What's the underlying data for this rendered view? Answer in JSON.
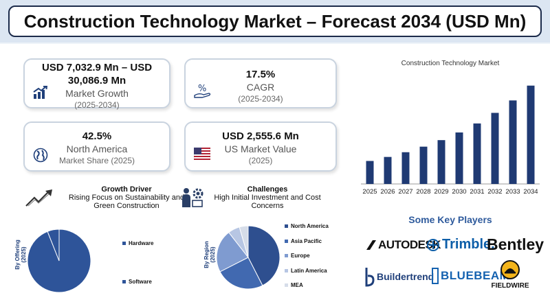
{
  "title": "Construction Technology Market – Forecast 2034 (USD Mn)",
  "cards": {
    "market_growth": {
      "value": "USD 7,032.9 Mn – USD 30,086.9 Mn",
      "label": "Market Growth",
      "sub": "(2025-2034)"
    },
    "cagr": {
      "value": "17.5%",
      "label": "CAGR",
      "sub": "(2025-2034)"
    },
    "north_america": {
      "value": "42.5%",
      "label": "North America",
      "sub": "Market Share (2025)"
    },
    "us_market": {
      "value": "USD 2,555.6 Mn",
      "label": "US Market Value",
      "sub": "(2025)"
    }
  },
  "growth_driver": {
    "title": "Growth Driver",
    "text": "Rising Focus on Sustainability and Green Construction"
  },
  "challenges": {
    "title": "Challenges",
    "text": "High Initial Investment and Cost Concerns"
  },
  "icons": {
    "market_growth": "bar-chart-arrow-icon",
    "cagr": "percent-hand-icon",
    "north_america": "globe-icon",
    "us_market": "us-flag-icon",
    "growth_driver": "trend-arrow-icon",
    "challenges": "worker-gear-icon"
  },
  "chart_data": [
    {
      "type": "bar",
      "title": "Construction Technology Market",
      "categories": [
        "2025",
        "2026",
        "2027",
        "2028",
        "2029",
        "2030",
        "2031",
        "2032",
        "2033",
        "2034"
      ],
      "values": [
        7032.9,
        8263.7,
        9709.8,
        11409.0,
        13405.6,
        15751.6,
        18508.1,
        21746.9,
        25552.6,
        30086.9
      ],
      "ylim": [
        0,
        31500
      ],
      "color": "#1f3a73",
      "grid": false,
      "legend": "none"
    },
    {
      "type": "pie",
      "ylabel": "By Offering (2025)",
      "categories": [
        "Hardware",
        "Software"
      ],
      "values": [
        94,
        6
      ],
      "colors": [
        "#2e5499",
        "#2e5499"
      ],
      "legend": "right"
    },
    {
      "type": "pie",
      "ylabel": "By Region (2025)",
      "categories": [
        "North America",
        "Asia Pacific",
        "Europe",
        "Latin America",
        "MEA"
      ],
      "values": [
        42.5,
        25,
        22,
        6,
        4.5
      ],
      "colors": [
        "#2e4f8f",
        "#4169b0",
        "#7f9bd0",
        "#b7c6e3",
        "#d6dde9"
      ],
      "legend": "right"
    }
  ],
  "key_players": {
    "title": "Some Key Players",
    "logos": [
      "AUTODESK",
      "Trimble.",
      "Bentley",
      "Buildertrend",
      "BLUEBEAM",
      "FIELDWIRE"
    ]
  }
}
